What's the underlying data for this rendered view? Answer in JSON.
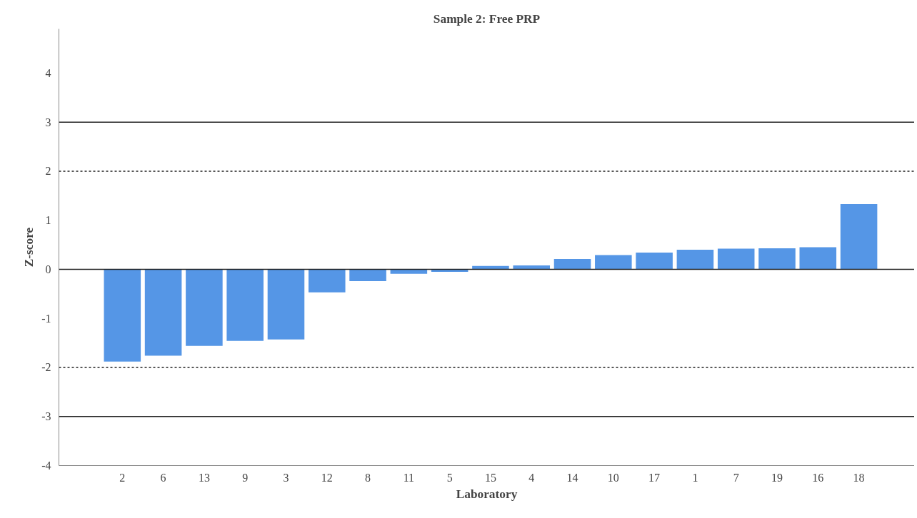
{
  "chart_data": {
    "type": "bar",
    "title": "Sample 2: Free PRP",
    "xlabel": "Laboratory",
    "ylabel": "Z-score",
    "categories": [
      "2",
      "6",
      "13",
      "9",
      "3",
      "12",
      "8",
      "11",
      "5",
      "15",
      "4",
      "14",
      "10",
      "17",
      "1",
      "7",
      "19",
      "16",
      "18"
    ],
    "values": [
      -1.88,
      -1.76,
      -1.56,
      -1.46,
      -1.43,
      -0.47,
      -0.24,
      -0.09,
      -0.05,
      0.07,
      0.08,
      0.21,
      0.29,
      0.34,
      0.4,
      0.42,
      0.43,
      0.45,
      1.33
    ],
    "color": "#5596e6",
    "ylim": [
      -4,
      4.9
    ],
    "yticks": [
      -4,
      -3,
      -2,
      -1,
      0,
      1,
      2,
      3,
      4
    ],
    "grid": false,
    "ref_lines": [
      {
        "axis": "y",
        "value": 3,
        "line_style": "solid"
      },
      {
        "axis": "y",
        "value": 2,
        "line_style": "dashed"
      },
      {
        "axis": "y",
        "value": 0,
        "line_style": "solid"
      },
      {
        "axis": "y",
        "value": -2,
        "line_style": "dashed"
      },
      {
        "axis": "y",
        "value": -3,
        "line_style": "solid"
      }
    ]
  }
}
